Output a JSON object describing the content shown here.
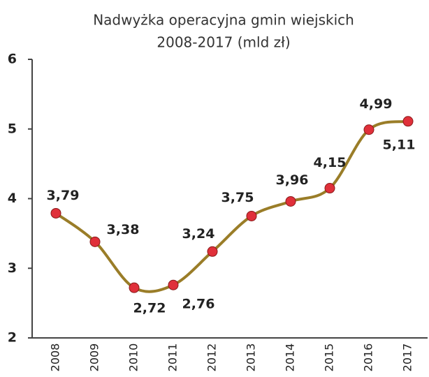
{
  "chart_data": {
    "type": "line",
    "title": "Nadwyżka operacyjna gmin wiejskich",
    "subtitle": "2008-2017  (mld zł)",
    "categories": [
      "2008",
      "2009",
      "2010",
      "2011",
      "2012",
      "2013",
      "2014",
      "2015",
      "2016",
      "2017"
    ],
    "values": [
      3.79,
      3.38,
      2.72,
      2.76,
      3.24,
      3.75,
      3.96,
      4.15,
      4.99,
      5.11
    ],
    "value_labels": [
      "3,79",
      "3,38",
      "2,72",
      "2,76",
      "3,24",
      "3,75",
      "3,96",
      "4,15",
      "4,99",
      "5,11"
    ],
    "color": "#9a7d28",
    "marker_color": "#e0303a",
    "ylim": [
      2,
      6
    ],
    "yticks": [
      2,
      3,
      4,
      5,
      6
    ],
    "grid": false
  }
}
